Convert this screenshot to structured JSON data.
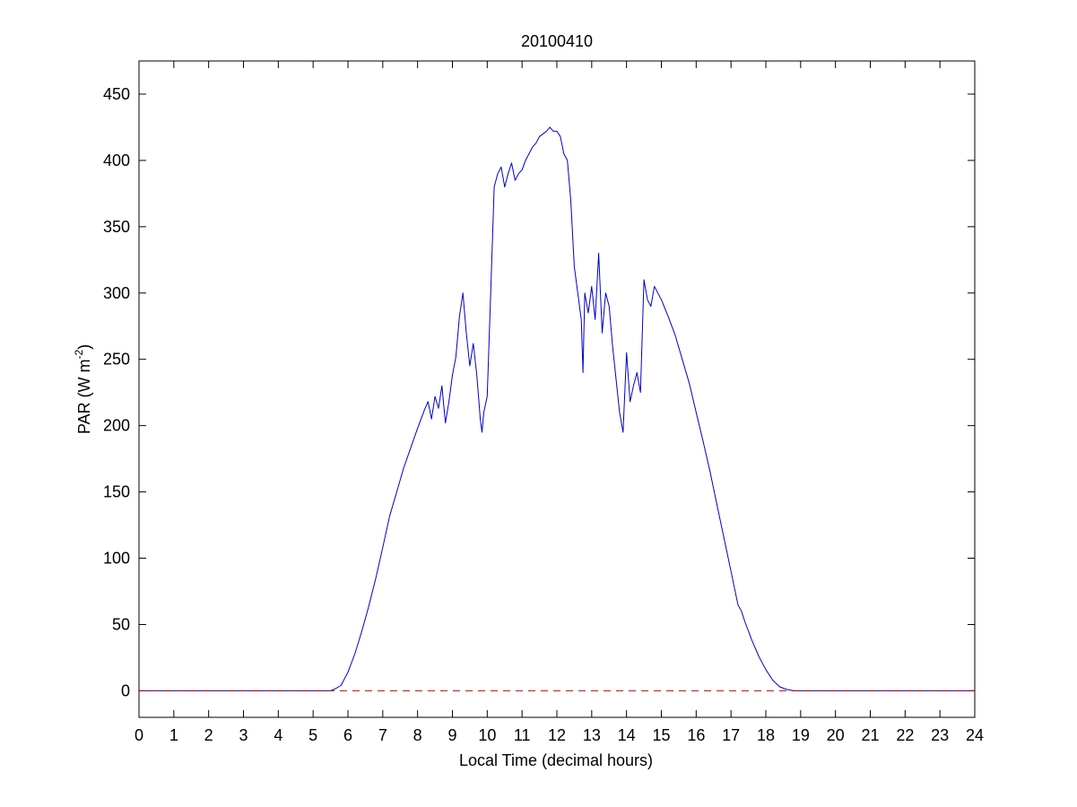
{
  "chart_data": {
    "type": "line",
    "title": "20100410",
    "xlabel": "Local Time (decimal hours)",
    "ylabel": {
      "base": "PAR (W m",
      "superscript": "-2",
      "close": ")"
    },
    "xlim": [
      0,
      24
    ],
    "ylim": [
      -20,
      475
    ],
    "xticks": [
      0,
      1,
      2,
      3,
      4,
      5,
      6,
      7,
      8,
      9,
      10,
      11,
      12,
      13,
      14,
      15,
      16,
      17,
      18,
      19,
      20,
      21,
      22,
      23,
      24
    ],
    "xtick_labels": [
      "0",
      "1",
      "2",
      "3",
      "4",
      "5",
      "6",
      "7",
      "8",
      "9",
      "10",
      "11",
      "12",
      "13",
      "14",
      "15",
      "16",
      "17",
      "18",
      "19",
      "20",
      "21",
      "22",
      "23",
      "24"
    ],
    "yticks": [
      0,
      50,
      100,
      150,
      200,
      250,
      300,
      350,
      400,
      450
    ],
    "ytick_labels": [
      "0",
      "50",
      "100",
      "150",
      "200",
      "250",
      "300",
      "350",
      "400",
      "450"
    ],
    "grid": false,
    "legend": "none",
    "series": [
      {
        "style": "solid",
        "color": "#0000cc",
        "x": [
          0,
          5.5,
          5.6,
          5.8,
          6.0,
          6.2,
          6.4,
          6.6,
          6.8,
          7.0,
          7.2,
          7.4,
          7.6,
          7.8,
          8.0,
          8.2,
          8.3,
          8.4,
          8.5,
          8.6,
          8.7,
          8.8,
          8.9,
          9.0,
          9.1,
          9.2,
          9.3,
          9.4,
          9.5,
          9.6,
          9.7,
          9.8,
          9.85,
          9.9,
          10.0,
          10.1,
          10.2,
          10.3,
          10.4,
          10.5,
          10.6,
          10.7,
          10.8,
          10.9,
          11.0,
          11.1,
          11.2,
          11.3,
          11.4,
          11.5,
          11.6,
          11.7,
          11.8,
          11.9,
          12.0,
          12.1,
          12.2,
          12.3,
          12.4,
          12.5,
          12.6,
          12.7,
          12.75,
          12.8,
          12.9,
          13.0,
          13.1,
          13.2,
          13.3,
          13.4,
          13.5,
          13.6,
          13.7,
          13.8,
          13.9,
          14.0,
          14.1,
          14.2,
          14.3,
          14.4,
          14.5,
          14.6,
          14.7,
          14.8,
          14.9,
          15.0,
          15.2,
          15.4,
          15.6,
          15.8,
          16.0,
          16.2,
          16.4,
          16.6,
          16.8,
          17.0,
          17.2,
          17.3,
          17.4,
          17.6,
          17.8,
          18.0,
          18.2,
          18.4,
          18.6,
          18.8,
          19.0,
          19.2,
          24
        ],
        "y": [
          0,
          0,
          1,
          4,
          14,
          28,
          45,
          64,
          85,
          108,
          132,
          150,
          168,
          183,
          198,
          212,
          218,
          205,
          222,
          213,
          230,
          202,
          218,
          238,
          252,
          282,
          300,
          270,
          245,
          262,
          238,
          205,
          195,
          210,
          222,
          300,
          380,
          390,
          395,
          380,
          390,
          398,
          385,
          390,
          393,
          400,
          405,
          410,
          413,
          418,
          420,
          422,
          425,
          422,
          422,
          418,
          405,
          400,
          370,
          320,
          300,
          280,
          240,
          300,
          285,
          305,
          280,
          330,
          270,
          300,
          290,
          260,
          235,
          210,
          195,
          255,
          218,
          230,
          240,
          225,
          310,
          295,
          290,
          305,
          300,
          295,
          282,
          268,
          250,
          232,
          210,
          188,
          165,
          140,
          115,
          90,
          65,
          60,
          52,
          38,
          26,
          16,
          8,
          3,
          1,
          0,
          0,
          0,
          0
        ]
      },
      {
        "style": "dashed",
        "color": "#cc0000",
        "x": [
          0,
          24
        ],
        "y": [
          0,
          0
        ]
      }
    ]
  }
}
